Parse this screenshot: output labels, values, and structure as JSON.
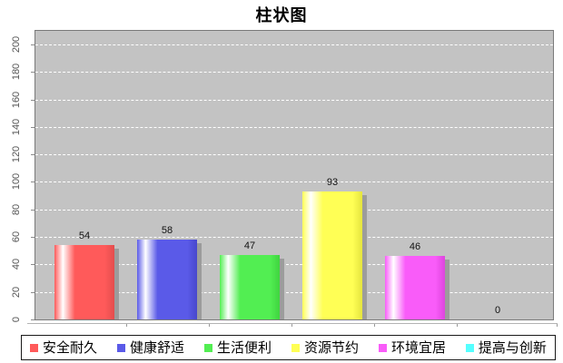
{
  "title": "柱状图",
  "chart_data": {
    "type": "bar",
    "title": "柱状图",
    "categories": [
      "安全耐久",
      "健康舒适",
      "生活便利",
      "资源节约",
      "环境宜居",
      "提高与创新"
    ],
    "values": [
      54,
      58,
      47,
      93,
      46,
      0
    ],
    "series": [
      {
        "name": "安全耐久",
        "value": 54,
        "color": "#ff5a5a",
        "edge": "#e34d4d"
      },
      {
        "name": "健康舒适",
        "value": 58,
        "color": "#5a5ae8",
        "edge": "#4747cc"
      },
      {
        "name": "生活便利",
        "value": 47,
        "color": "#52ee52",
        "edge": "#3fd43f"
      },
      {
        "name": "资源节约",
        "value": 93,
        "color": "#ffff55",
        "edge": "#e4e43e"
      },
      {
        "name": "环境宜居",
        "value": 46,
        "color": "#f95cf9",
        "edge": "#dd45dd"
      },
      {
        "name": "提高与创新",
        "value": 0,
        "color": "#55ffff",
        "edge": "#3fe0e0"
      }
    ],
    "xlabel": "",
    "ylabel": "",
    "ylim": [
      0,
      200
    ],
    "ytick_step": 20,
    "ytick_labels": [
      "0",
      "20",
      "40",
      "60",
      "80",
      "100",
      "120",
      "140",
      "160",
      "180",
      "200"
    ],
    "grid": "horizontal dashed white lines on gray plot",
    "legend_position": "bottom",
    "value_labels_shown": true,
    "style": {
      "plot_bg": "#c3c3c3",
      "grid_color": "#ffffff",
      "bar_shadow": "#9c9c9c",
      "axis_line": "#b3b3b3",
      "tick_color": "#8a8a8a",
      "ytick_label_color": "#555555",
      "value_label_color": "#111111",
      "legend_border": "#1a1a1a",
      "title_color": "#000000"
    }
  }
}
